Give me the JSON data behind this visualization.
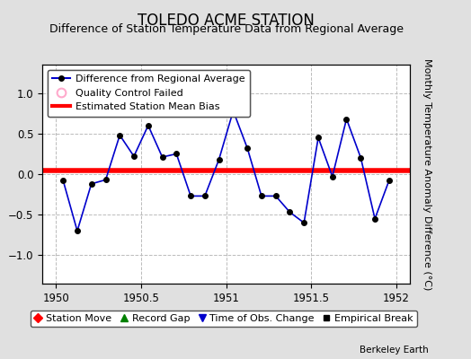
{
  "title": "TOLEDO ACME STATION",
  "subtitle": "Difference of Station Temperature Data from Regional Average",
  "ylabel": "Monthly Temperature Anomaly Difference (°C)",
  "background_color": "#e0e0e0",
  "plot_bg_color": "#ffffff",
  "bias_value": 0.04,
  "bias_color": "#ff0000",
  "bias_linewidth": 4,
  "line_color": "#0000cc",
  "line_width": 1.2,
  "marker_color": "#000000",
  "marker_size": 4,
  "xlim": [
    1949.92,
    1952.08
  ],
  "ylim": [
    -1.35,
    1.35
  ],
  "yticks": [
    -1,
    -0.5,
    0,
    0.5,
    1
  ],
  "xticks": [
    1950,
    1950.5,
    1951,
    1951.5,
    1952
  ],
  "xtick_labels": [
    "1950",
    "1950.5",
    "1951",
    "1951.5",
    "1952"
  ],
  "grid_color": "#bbbbbb",
  "grid_linestyle": "--",
  "x_data": [
    1950.042,
    1950.125,
    1950.208,
    1950.292,
    1950.375,
    1950.458,
    1950.542,
    1950.625,
    1950.708,
    1950.792,
    1950.875,
    1950.958,
    1951.042,
    1951.125,
    1951.208,
    1951.292,
    1951.375,
    1951.458,
    1951.542,
    1951.625,
    1951.708,
    1951.792,
    1951.875,
    1951.958
  ],
  "y_data": [
    -0.08,
    -0.7,
    -0.12,
    -0.07,
    0.48,
    0.22,
    0.6,
    0.21,
    0.25,
    -0.27,
    -0.27,
    0.18,
    0.78,
    0.32,
    -0.27,
    -0.27,
    -0.47,
    -0.6,
    0.45,
    -0.03,
    0.68,
    0.2,
    -0.55,
    -0.08
  ],
  "legend1_label": "Difference from Regional Average",
  "legend2_label": "Quality Control Failed",
  "legend3_label": "Estimated Station Mean Bias",
  "legend4_label": "Station Move",
  "legend5_label": "Record Gap",
  "legend6_label": "Time of Obs. Change",
  "legend7_label": "Empirical Break",
  "title_fontsize": 12,
  "subtitle_fontsize": 9,
  "tick_fontsize": 8.5,
  "legend_fontsize": 8,
  "ylabel_fontsize": 8,
  "watermark": "Berkeley Earth"
}
